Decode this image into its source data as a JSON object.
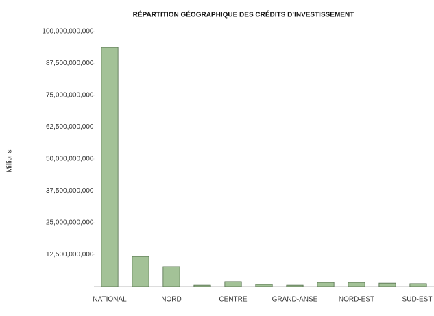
{
  "chart_data": {
    "type": "bar",
    "title": "RÉPARTITION GÉOGRAPHIQUE DES CRÉDITS D’INVESTISSEMENT",
    "y_label": "Millions",
    "categories": [
      "NATIONAL",
      null,
      "NORD",
      null,
      "CENTRE",
      null,
      "GRAND-ANSE",
      null,
      "NORD-EST",
      null,
      "SUD-EST"
    ],
    "values": [
      93800000000,
      11800000000,
      7800000000,
      500000000,
      1900000000,
      800000000,
      500000000,
      1600000000,
      1600000000,
      1300000000,
      1100000000
    ],
    "color": "#a3c297",
    "ylim": [
      0,
      100000000000
    ],
    "yticks": [
      {
        "value": 12500000000,
        "label": "12,500,000,000"
      },
      {
        "value": 25000000000,
        "label": "25,000,000,000"
      },
      {
        "value": 37500000000,
        "label": "37,500,000,000"
      },
      {
        "value": 50000000000,
        "label": "50,000,000,000"
      },
      {
        "value": 62500000000,
        "label": "62,500,000,000"
      },
      {
        "value": 75000000000,
        "label": "75,000,000,000"
      },
      {
        "value": 87500000000,
        "label": "87,500,000,000"
      },
      {
        "value": 100000000000,
        "label": "100,000,000,000"
      }
    ],
    "grid": false
  }
}
